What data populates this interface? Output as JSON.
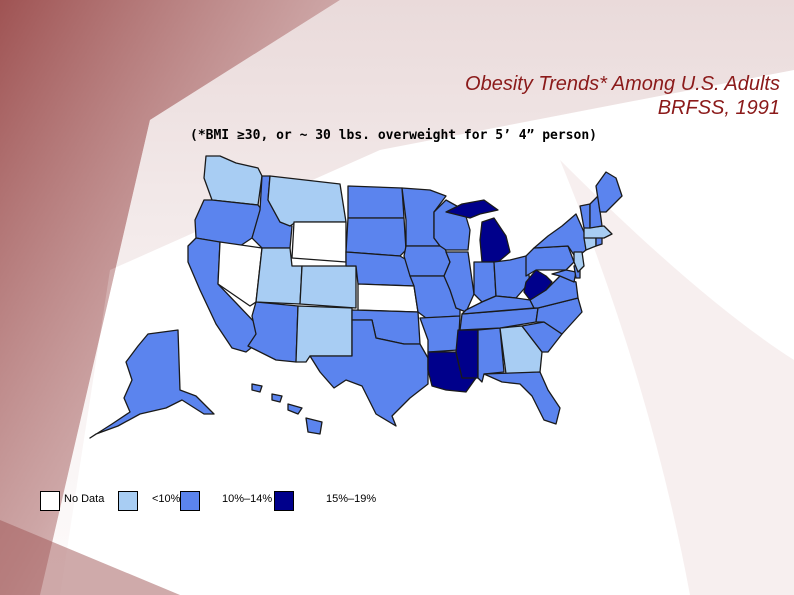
{
  "title": {
    "line1": "Obesity Trends* Among U.S. Adults",
    "line2": "BRFSS, 1991"
  },
  "subtitle": "(*BMI ≥30, or ~ 30 lbs. overweight for 5’ 4” person)",
  "colors": {
    "no_data": "#ffffff",
    "lt10": "#a8cdf3",
    "c10_14": "#5b84ee",
    "c15_19": "#00008b",
    "border": "#1a1a1a",
    "title": "#8b1a1a",
    "bg_accent": "#8a3a3a"
  },
  "legend": [
    {
      "key": "no_data",
      "label": "No Data"
    },
    {
      "key": "lt10",
      "label": "<10%"
    },
    {
      "key": "c10_14",
      "label": "10%–14%"
    },
    {
      "key": "c15_19",
      "label": "15%–19%"
    }
  ],
  "categories": {
    "no_data": [
      "Nevada",
      "Wyoming",
      "Kansas"
    ],
    "lt10": [
      "Washington",
      "Montana",
      "Utah",
      "Colorado",
      "New Mexico",
      "Georgia",
      "Massachusetts",
      "Connecticut",
      "New Jersey"
    ],
    "c15_19": [
      "Michigan",
      "West Virginia",
      "Louisiana",
      "Mississippi"
    ],
    "c10_14_default": "all other states"
  }
}
